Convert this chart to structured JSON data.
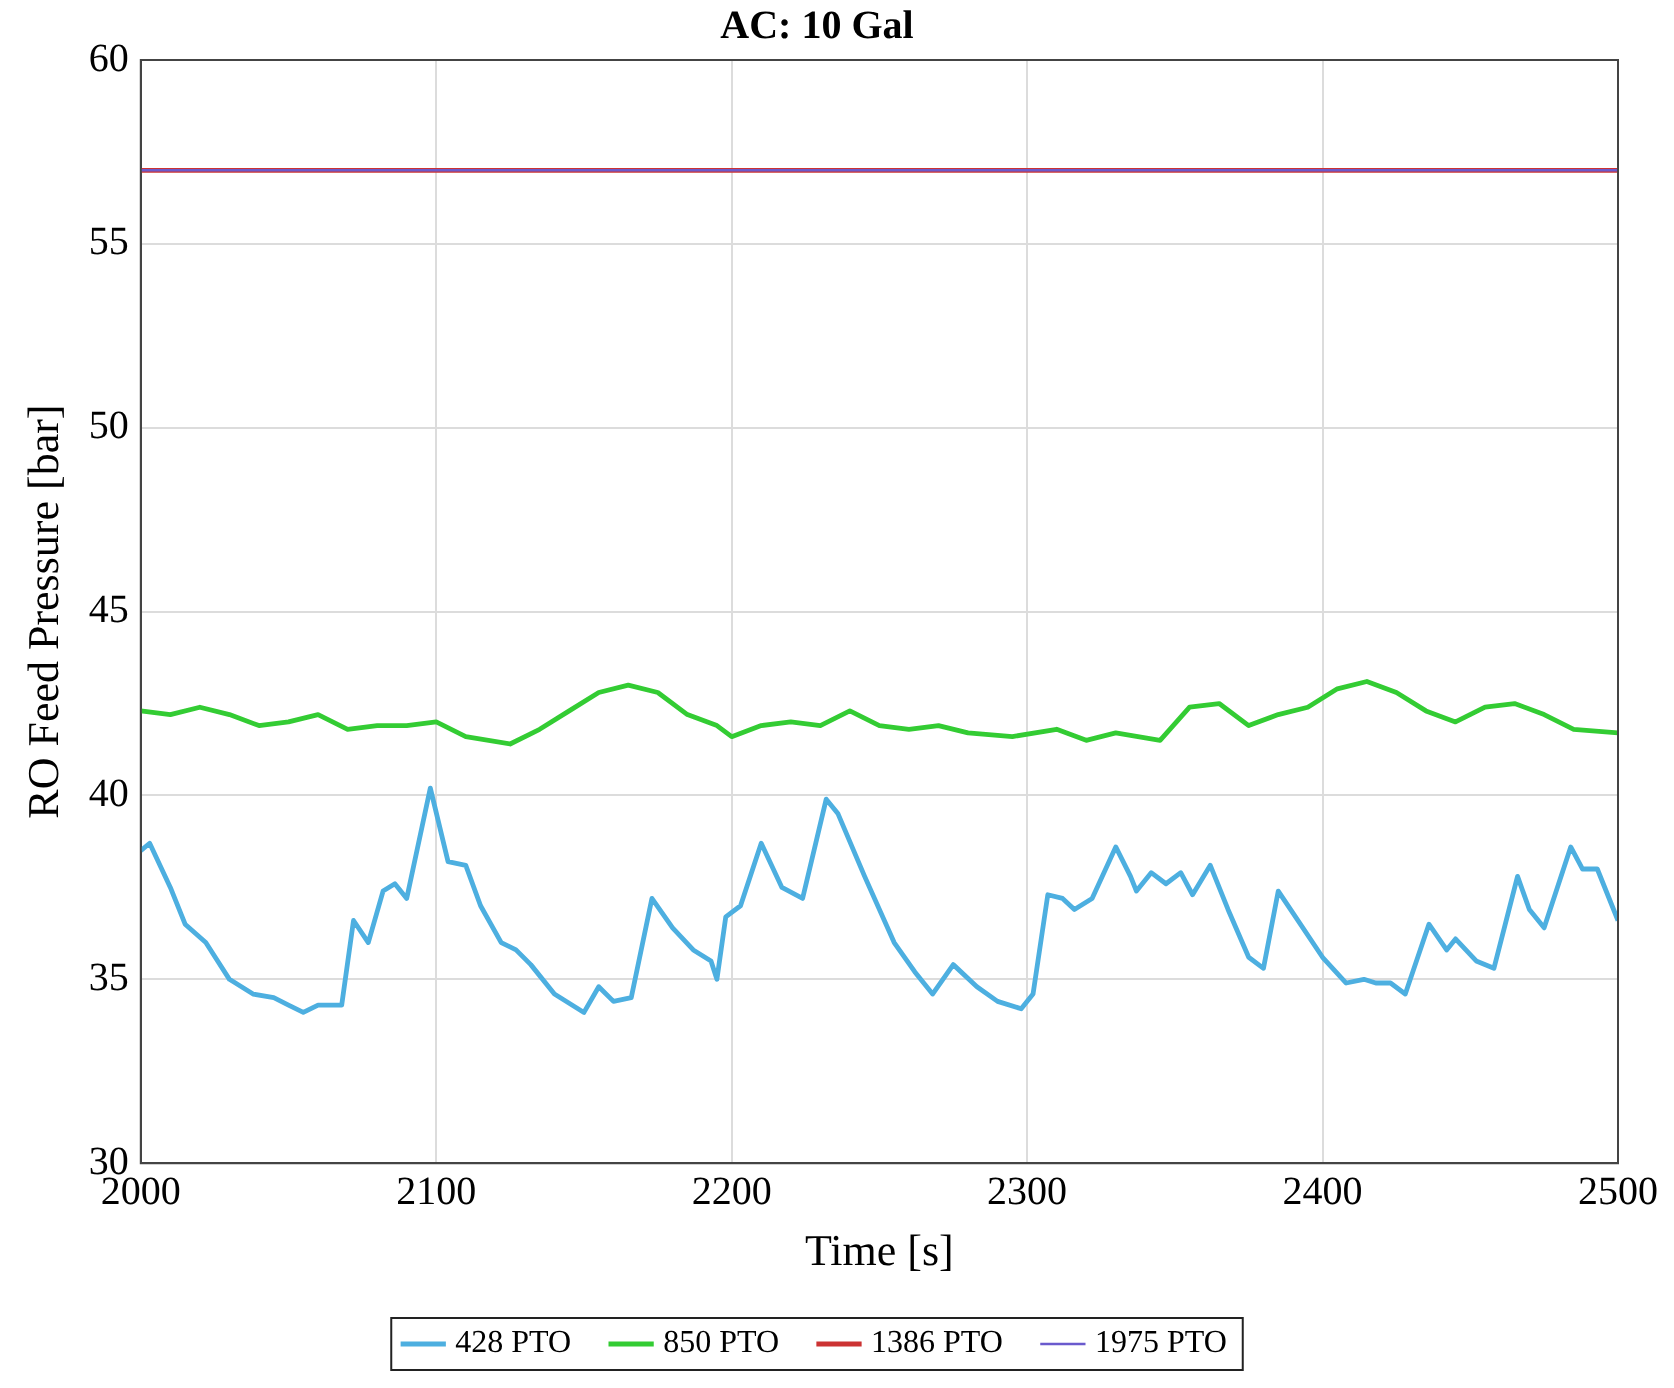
{
  "chart_data": {
    "type": "line",
    "title": "AC: 10 Gal",
    "xlabel": "Time [s]",
    "ylabel": "RO Feed Pressure [bar]",
    "xlim": [
      2000,
      2500
    ],
    "xticks": [
      2000,
      2100,
      2200,
      2300,
      2400,
      2500
    ],
    "ylim": [
      30,
      60
    ],
    "yticks": [
      30,
      35,
      40,
      45,
      50,
      55,
      60
    ],
    "grid": true,
    "legend": "bottom",
    "marker": "none",
    "line_style": "solid",
    "series": [
      {
        "name": "428 PTO",
        "color": "#4dafe0",
        "x": [
          2000,
          2003,
          2010,
          2015,
          2022,
          2030,
          2038,
          2045,
          2050,
          2055,
          2060,
          2068,
          2072,
          2077,
          2082,
          2086,
          2090,
          2098,
          2104,
          2110,
          2115,
          2122,
          2127,
          2132,
          2140,
          2150,
          2155,
          2160,
          2166,
          2173,
          2180,
          2187,
          2193,
          2195,
          2198,
          2203,
          2210,
          2217,
          2224,
          2232,
          2236,
          2245,
          2255,
          2262,
          2268,
          2275,
          2283,
          2290,
          2298,
          2302,
          2307,
          2312,
          2316,
          2322,
          2330,
          2335,
          2337,
          2342,
          2347,
          2352,
          2356,
          2362,
          2368,
          2375,
          2380,
          2385,
          2390,
          2400,
          2408,
          2414,
          2418,
          2423,
          2428,
          2436,
          2442,
          2445,
          2452,
          2458,
          2466,
          2470,
          2475,
          2484,
          2488,
          2493,
          2500
        ],
        "values": [
          38.5,
          38.7,
          37.5,
          36.5,
          36.0,
          35.0,
          34.6,
          34.5,
          34.3,
          34.1,
          34.3,
          34.3,
          36.6,
          36.0,
          37.4,
          37.6,
          37.2,
          40.2,
          38.2,
          38.1,
          37.0,
          36.0,
          35.8,
          35.4,
          34.6,
          34.1,
          34.8,
          34.4,
          34.5,
          37.2,
          36.4,
          35.8,
          35.5,
          35.0,
          36.7,
          37.0,
          38.7,
          37.5,
          37.2,
          39.9,
          39.5,
          37.8,
          36.0,
          35.2,
          34.6,
          35.4,
          34.8,
          34.4,
          34.2,
          34.6,
          37.3,
          37.2,
          36.9,
          37.2,
          38.6,
          37.8,
          37.4,
          37.9,
          37.6,
          37.9,
          37.3,
          38.1,
          36.9,
          35.6,
          35.3,
          37.4,
          36.8,
          35.6,
          34.9,
          35.0,
          34.9,
          34.9,
          34.6,
          36.5,
          35.8,
          36.1,
          35.5,
          35.3,
          37.8,
          36.9,
          36.4,
          38.6,
          38.0,
          38.0,
          36.6
        ]
      },
      {
        "name": "850 PTO",
        "color": "#33cc33",
        "x": [
          2000,
          2010,
          2020,
          2030,
          2040,
          2050,
          2060,
          2070,
          2080,
          2090,
          2100,
          2110,
          2125,
          2135,
          2145,
          2155,
          2165,
          2175,
          2185,
          2195,
          2200,
          2210,
          2220,
          2230,
          2240,
          2250,
          2260,
          2270,
          2280,
          2295,
          2310,
          2320,
          2330,
          2345,
          2355,
          2365,
          2375,
          2385,
          2395,
          2405,
          2415,
          2425,
          2435,
          2445,
          2455,
          2465,
          2475,
          2485,
          2500
        ],
        "values": [
          42.3,
          42.2,
          42.4,
          42.2,
          41.9,
          42.0,
          42.2,
          41.8,
          41.9,
          41.9,
          42.0,
          41.6,
          41.4,
          41.8,
          42.3,
          42.8,
          43.0,
          42.8,
          42.2,
          41.9,
          41.6,
          41.9,
          42.0,
          41.9,
          42.3,
          41.9,
          41.8,
          41.9,
          41.7,
          41.6,
          41.8,
          41.5,
          41.7,
          41.5,
          42.4,
          42.5,
          41.9,
          42.2,
          42.4,
          42.9,
          43.1,
          42.8,
          42.3,
          42.0,
          42.4,
          42.5,
          42.2,
          41.8,
          41.7
        ]
      },
      {
        "name": "1386 PTO",
        "color": "#cc3333",
        "x": [
          2000,
          2500
        ],
        "values": [
          57.0,
          57.0
        ]
      },
      {
        "name": "1975 PTO",
        "color": "#6a5acd",
        "x": [
          2000,
          2500
        ],
        "values": [
          57.0,
          57.0
        ]
      }
    ]
  }
}
